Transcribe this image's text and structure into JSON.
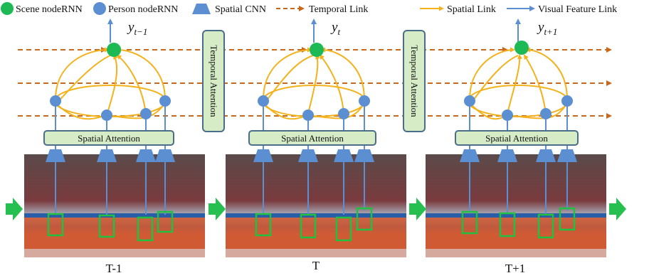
{
  "legend": {
    "scene_node": "Scene nodeRNN",
    "person_node": "Person nodeRNN",
    "spatial_cnn": "Spatial CNN",
    "temporal_link": "Temporal Link",
    "spatial_link": "Spatial Link",
    "visual_link": "Visual Feature Link"
  },
  "colors": {
    "scene_node": "#1db954",
    "person_node": "#5b8fd1",
    "temporal_link": "#c8681c",
    "spatial_link": "#f3b21c",
    "visual_link": "#5b8fd1",
    "attention_fill": "#d6ecc7",
    "attention_stroke": "#4a6e8a",
    "detection_box": "#20c040",
    "arrow": "#25c050"
  },
  "attention": {
    "spatial": "Spatial Attention",
    "temporal": "Temporal Attention"
  },
  "frames": [
    {
      "y_base": "y",
      "y_sub": "t−1",
      "label": "T-1"
    },
    {
      "y_base": "y",
      "y_sub": "t",
      "label": "T"
    },
    {
      "y_base": "y",
      "y_sub": "t+1",
      "label": "T+1"
    }
  ]
}
